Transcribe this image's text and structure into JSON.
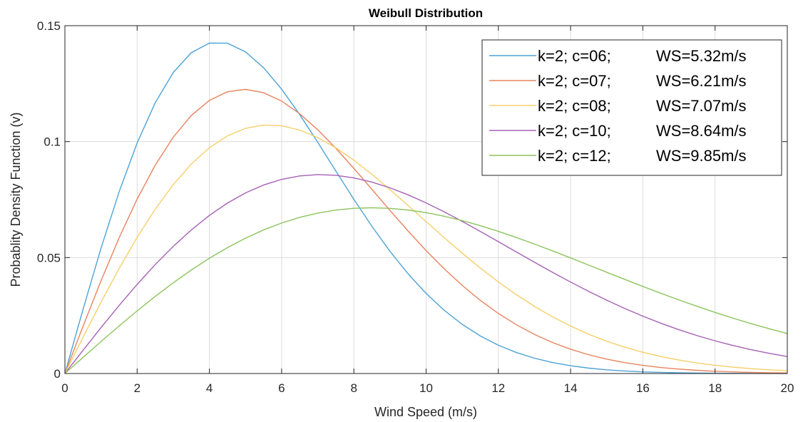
{
  "chart_data": {
    "type": "line",
    "title": "Weibull Distribution",
    "xlabel": "Wind Speed (m/s)",
    "ylabel": "Probablity Density Function (v)",
    "xlim": [
      0,
      20
    ],
    "ylim": [
      0,
      0.15
    ],
    "x_ticks": [
      "0",
      "2",
      "4",
      "6",
      "8",
      "10",
      "12",
      "14",
      "16",
      "18",
      "20"
    ],
    "y_ticks": [
      "0",
      "0.05",
      "0.1",
      "0.15"
    ],
    "grid": true,
    "legend_position": "top-right",
    "series": [
      {
        "name": "k=2; c=06;",
        "ws_label": "WS=5.32m/s",
        "k": 2,
        "c": 6,
        "color": "#4DA3D6"
      },
      {
        "name": "k=2; c=07;",
        "ws_label": "WS=6.21m/s",
        "k": 2,
        "c": 7,
        "color": "#E8835E"
      },
      {
        "name": "k=2; c=08;",
        "ws_label": "WS=7.07m/s",
        "k": 2,
        "c": 8,
        "color": "#F5CF68"
      },
      {
        "name": "k=2; c=10;",
        "ws_label": "WS=8.64m/s",
        "k": 2,
        "c": 10,
        "color": "#A562B6"
      },
      {
        "name": "k=2; c=12;",
        "ws_label": "WS=9.85m/s",
        "k": 2,
        "c": 12,
        "color": "#8DC45E"
      }
    ]
  }
}
